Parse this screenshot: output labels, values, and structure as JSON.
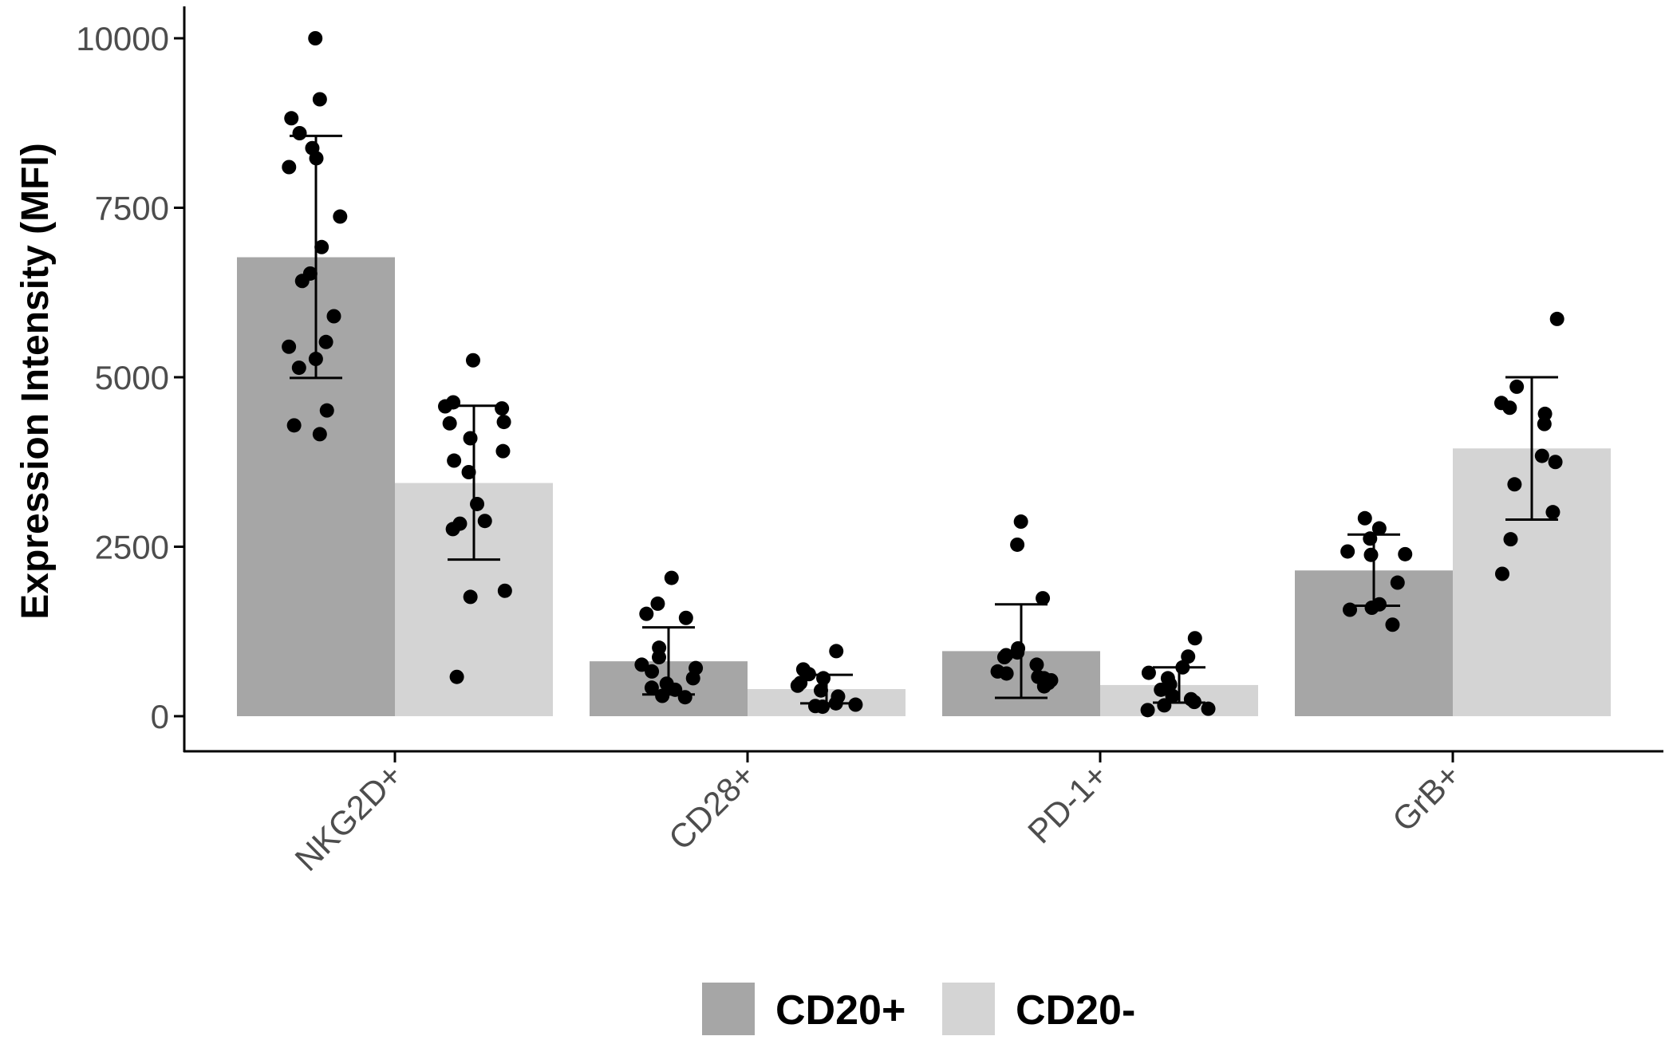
{
  "chart_data": {
    "type": "bar",
    "title": "",
    "xlabel": "",
    "ylabel": "Expression Intensity (MFI)",
    "ylim": [
      -500,
      10500
    ],
    "yticks": [
      0,
      2500,
      5000,
      7500,
      10000
    ],
    "ytick_labels": [
      "0",
      "2500",
      "5000",
      "7500",
      "10000"
    ],
    "categories": [
      "NKG2D+",
      "CD28+",
      "PD-1+",
      "GrB+"
    ],
    "grid": false,
    "legend_position": "bottom",
    "series": [
      {
        "name": "CD20+",
        "color": "#a6a6a6",
        "values": [
          6770,
          810,
          960,
          2150
        ],
        "error_low": [
          4990,
          320,
          270,
          1630
        ],
        "error_high": [
          8560,
          1310,
          1650,
          2680
        ],
        "points": [
          [
            10000,
            9100,
            8820,
            8600,
            8380,
            8230,
            8100,
            7370,
            6920,
            6530,
            6420,
            5900,
            5520,
            5450,
            5270,
            5140,
            4510,
            4290,
            4160
          ],
          [
            2040,
            1660,
            1510,
            1450,
            1010,
            870,
            760,
            710,
            660,
            560,
            480,
            420,
            390,
            300,
            280
          ],
          [
            2870,
            2530,
            1740,
            1000,
            940,
            900,
            870,
            760,
            660,
            630,
            580,
            560,
            530,
            490,
            440
          ],
          [
            2920,
            2770,
            2620,
            2430,
            2390,
            2380,
            1970,
            1650,
            1600,
            1570,
            1350
          ]
        ]
      },
      {
        "name": "CD20-",
        "color": "#d4d4d4",
        "values": [
          3440,
          400,
          460,
          3950
        ],
        "error_low": [
          2310,
          190,
          200,
          2900
        ],
        "error_high": [
          4580,
          610,
          720,
          5000
        ],
        "points": [
          [
            5250,
            4630,
            4570,
            4540,
            4340,
            4320,
            4100,
            3910,
            3770,
            3600,
            3130,
            2880,
            2840,
            2760,
            1850,
            1760,
            580
          ],
          [
            960,
            690,
            620,
            560,
            490,
            450,
            380,
            290,
            190,
            170,
            150,
            140
          ],
          [
            1150,
            880,
            720,
            640,
            560,
            470,
            390,
            300,
            250,
            210,
            160,
            110,
            90
          ],
          [
            5860,
            4860,
            4620,
            4550,
            4460,
            4310,
            3840,
            3750,
            3420,
            3010,
            2610,
            2100
          ]
        ]
      }
    ]
  }
}
